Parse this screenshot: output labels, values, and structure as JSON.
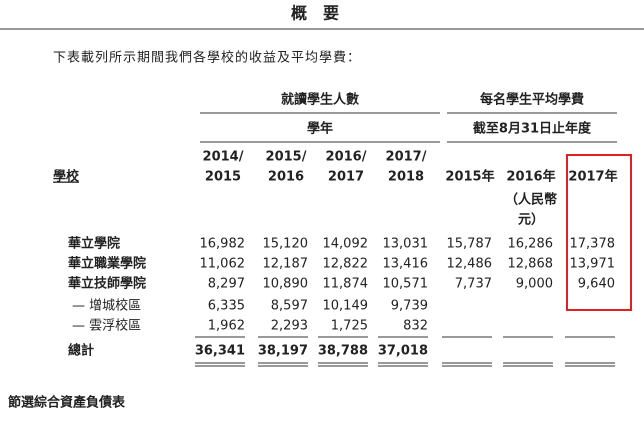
{
  "header": {
    "title": "概　要"
  },
  "intro": "下表載列所示期間我們各學校的收益及平均學費：",
  "table": {
    "group_headers": [
      {
        "title": "就讀學生人數",
        "subtitle": "學年"
      },
      {
        "title": "每名學生平均學費",
        "subtitle": "截至8月31日止年度"
      }
    ],
    "school_label": "學校",
    "columns": [
      [
        "2014/",
        "2015"
      ],
      [
        "2015/",
        "2016"
      ],
      [
        "2016/",
        "2017"
      ],
      [
        "2017/",
        "2018"
      ],
      [
        "2015年"
      ],
      [
        "2016年"
      ],
      [
        "2017年"
      ]
    ],
    "unit": [
      "（人民幣",
      "元）"
    ],
    "rows": [
      {
        "name": "華立學院",
        "values": [
          "16,982",
          "15,120",
          "14,092",
          "13,031",
          "15,787",
          "16,286",
          "17,378"
        ]
      },
      {
        "name": "華立職業學院",
        "values": [
          "11,062",
          "12,187",
          "12,822",
          "13,416",
          "12,486",
          "12,868",
          "13,971"
        ]
      },
      {
        "name": "華立技師學院",
        "values": [
          "8,297",
          "10,890",
          "11,874",
          "10,571",
          "7,737",
          "9,000",
          "9,640"
        ]
      },
      {
        "name": "— 增城校區",
        "values": [
          "6,335",
          "8,597",
          "10,149",
          "9,739",
          null,
          null,
          null
        ]
      },
      {
        "name": "— 雲浮校區",
        "values": [
          "1,962",
          "2,293",
          "1,725",
          "832",
          null,
          null,
          null
        ]
      }
    ],
    "total": {
      "name": "總計",
      "values": [
        "36,341",
        "38,197",
        "38,788",
        "37,018",
        null,
        null,
        null
      ]
    }
  },
  "footer": {
    "title": "節選綜合資產負債表"
  }
}
